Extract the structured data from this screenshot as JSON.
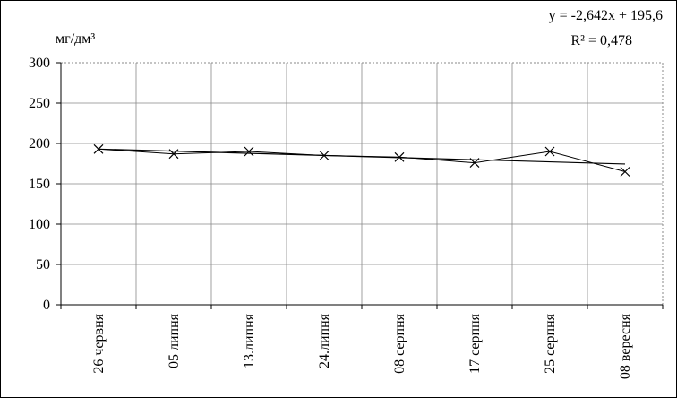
{
  "chart_data": {
    "type": "line",
    "y_label": "мг/дм³",
    "categories": [
      "26 червня",
      "05 липня",
      "13.липня",
      "24.липня",
      "08 серпня",
      "17 серпня",
      "25 серпня",
      "08 вересня"
    ],
    "values": [
      193,
      187,
      190,
      185,
      183,
      176,
      190,
      165
    ],
    "color": "#000000",
    "ylim": [
      0,
      300
    ],
    "yticks": [
      0,
      50,
      100,
      150,
      200,
      250,
      300
    ],
    "grid": true,
    "trendline": {
      "equation": "y = -2,642x + 195,6",
      "r2": "R² = 0,478",
      "start": 193,
      "end": 174.5
    }
  }
}
